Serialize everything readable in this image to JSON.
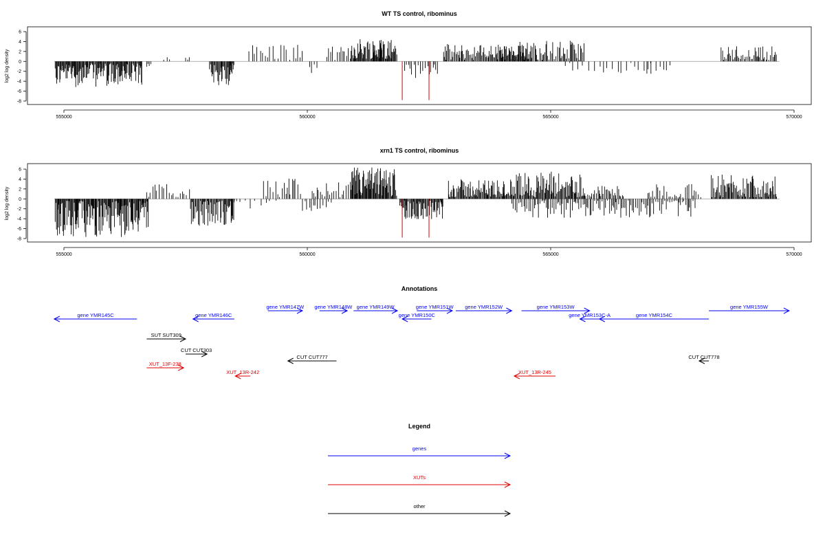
{
  "chart_data": [
    {
      "type": "bar",
      "title": "WT TS control, ribominus",
      "ylabel": "log2 log density",
      "xlim": [
        554800,
        569800
      ],
      "ylim": [
        -8,
        6.5
      ],
      "yticks": [
        "6",
        "4",
        "2",
        "0",
        "-2",
        "-4",
        "-6",
        "-8"
      ],
      "xticks": [
        "555000",
        "560000",
        "565000",
        "570000"
      ],
      "baseline_range": [
        554800,
        569700
      ],
      "highlight_color": "#cc0000",
      "highlights": [
        {
          "x": 561950,
          "y": -7.8
        },
        {
          "x": 562500,
          "y": -7.8
        }
      ],
      "segments": [
        {
          "start": 554820,
          "end": 556600,
          "min": -5.2,
          "max": -0.4,
          "density": 1.0
        },
        {
          "start": 557500,
          "end": 557600,
          "min": 0.3,
          "max": 1.0,
          "density": 0.3
        },
        {
          "start": 556700,
          "end": 556800,
          "min": -2.0,
          "max": -0.5,
          "density": 0.4
        },
        {
          "start": 557050,
          "end": 557200,
          "min": 0.3,
          "max": 1.0,
          "density": 0.2
        },
        {
          "start": 557990,
          "end": 558500,
          "min": -5.0,
          "max": -0.4,
          "density": 0.9
        },
        {
          "start": 558800,
          "end": 559900,
          "min": 0.3,
          "max": 3.8,
          "density": 0.25
        },
        {
          "start": 560050,
          "end": 560200,
          "min": -2.5,
          "max": -0.5,
          "density": 0.3
        },
        {
          "start": 560400,
          "end": 560900,
          "min": 0.3,
          "max": 3.0,
          "density": 0.4
        },
        {
          "start": 560900,
          "end": 561850,
          "min": 0.5,
          "max": 4.9,
          "density": 1.0
        },
        {
          "start": 562000,
          "end": 562700,
          "min": -3.5,
          "max": -0.3,
          "density": 0.35
        },
        {
          "start": 562800,
          "end": 564600,
          "min": 0.3,
          "max": 3.5,
          "density": 0.7
        },
        {
          "start": 564000,
          "end": 565700,
          "min": 0.3,
          "max": 4.2,
          "density": 0.6
        },
        {
          "start": 565300,
          "end": 567100,
          "min": -2.5,
          "max": -0.3,
          "density": 0.15
        },
        {
          "start": 567000,
          "end": 567500,
          "min": -2.8,
          "max": -0.3,
          "density": 0.2
        },
        {
          "start": 568500,
          "end": 569650,
          "min": 0.3,
          "max": 3.2,
          "density": 0.55
        }
      ]
    },
    {
      "type": "bar",
      "title": "xrn1 TS control, ribominus",
      "ylabel": "log2 log density",
      "xlim": [
        554800,
        569800
      ],
      "ylim": [
        -8,
        6.5
      ],
      "yticks": [
        "6",
        "4",
        "2",
        "0",
        "-2",
        "-4",
        "-6",
        "-8"
      ],
      "xticks": [
        "555000",
        "560000",
        "565000",
        "570000"
      ],
      "baseline_range": [
        554800,
        569700
      ],
      "highlight_color": "#cc0000",
      "highlights": [
        {
          "x": 561950,
          "y": -7.8
        },
        {
          "x": 562500,
          "y": -7.8
        }
      ],
      "segments": [
        {
          "start": 554820,
          "end": 556750,
          "min": -7.8,
          "max": -0.4,
          "density": 1.0
        },
        {
          "start": 556700,
          "end": 557600,
          "min": 0.3,
          "max": 3.0,
          "density": 0.3
        },
        {
          "start": 557600,
          "end": 558500,
          "min": -5.5,
          "max": -0.4,
          "density": 0.9
        },
        {
          "start": 558500,
          "end": 559400,
          "min": -2.0,
          "max": -0.3,
          "density": 0.15
        },
        {
          "start": 559100,
          "end": 559900,
          "min": 0.3,
          "max": 4.2,
          "density": 0.35
        },
        {
          "start": 559900,
          "end": 560500,
          "min": -2.5,
          "max": -0.3,
          "density": 0.3
        },
        {
          "start": 560100,
          "end": 560900,
          "min": 0.3,
          "max": 3.5,
          "density": 0.4
        },
        {
          "start": 560900,
          "end": 561850,
          "min": 0.5,
          "max": 6.5,
          "density": 1.0
        },
        {
          "start": 561900,
          "end": 562800,
          "min": -4.2,
          "max": -0.3,
          "density": 0.9
        },
        {
          "start": 562900,
          "end": 564200,
          "min": 0.3,
          "max": 4.0,
          "density": 0.9
        },
        {
          "start": 564200,
          "end": 565700,
          "min": 0.3,
          "max": 5.5,
          "density": 0.9
        },
        {
          "start": 564200,
          "end": 568000,
          "min": -3.8,
          "max": -0.3,
          "density": 0.45
        },
        {
          "start": 565700,
          "end": 566500,
          "min": 0.3,
          "max": 3.0,
          "density": 0.5
        },
        {
          "start": 567000,
          "end": 568100,
          "min": 0.3,
          "max": 3.0,
          "density": 0.35
        },
        {
          "start": 568300,
          "end": 569650,
          "min": 0.3,
          "max": 5.2,
          "density": 0.85
        }
      ]
    }
  ],
  "annotations": {
    "title": "Annotations",
    "colors": {
      "genes": "#0000ee",
      "xuts": "#dd0000",
      "other": "#000000"
    },
    "features": [
      {
        "label": "gene YMR145C",
        "start": 554800,
        "end": 556500,
        "dir": "left",
        "row": 1,
        "cat": "genes"
      },
      {
        "label": "gene YMR146C",
        "start": 557650,
        "end": 558500,
        "dir": "left",
        "row": 1,
        "cat": "genes"
      },
      {
        "label": "gene YMR147W",
        "start": 559190,
        "end": 559900,
        "dir": "right",
        "row": 0,
        "cat": "genes"
      },
      {
        "label": "gene YMR148W",
        "start": 560250,
        "end": 560820,
        "dir": "right",
        "row": 0,
        "cat": "genes"
      },
      {
        "label": "gene YMR149W",
        "start": 560950,
        "end": 561850,
        "dir": "right",
        "row": 0,
        "cat": "genes"
      },
      {
        "label": "gene YMR150C",
        "start": 561950,
        "end": 562550,
        "dir": "left",
        "row": 1,
        "cat": "genes"
      },
      {
        "label": "gene YMR151W",
        "start": 562250,
        "end": 562980,
        "dir": "right",
        "row": 0,
        "cat": "genes"
      },
      {
        "label": "gene YMR152W",
        "start": 563050,
        "end": 564200,
        "dir": "right",
        "row": 0,
        "cat": "genes"
      },
      {
        "label": "gene YMR153W",
        "start": 564400,
        "end": 565800,
        "dir": "right",
        "row": 0,
        "cat": "genes"
      },
      {
        "label": "gene YMR153C-A",
        "start": 565600,
        "end": 566000,
        "dir": "left",
        "row": 1,
        "cat": "genes"
      },
      {
        "label": "gene YMR154C",
        "start": 566000,
        "end": 568250,
        "dir": "left",
        "row": 1,
        "cat": "genes"
      },
      {
        "label": "gene YMR155W",
        "start": 568250,
        "end": 569900,
        "dir": "right",
        "row": 0,
        "cat": "genes"
      },
      {
        "label": "SUT SUT309",
        "start": 556700,
        "end": 557500,
        "dir": "right",
        "row": 2,
        "cat": "other"
      },
      {
        "label": "CUT CUT303",
        "start": 557500,
        "end": 557940,
        "dir": "right",
        "row": 3,
        "cat": "other"
      },
      {
        "label": "CUT CUT777",
        "start": 559600,
        "end": 560600,
        "dir": "left",
        "row": 4,
        "cat": "other"
      },
      {
        "label": "CUT CUT778",
        "start": 568050,
        "end": 568250,
        "dir": "left",
        "row": 4,
        "cat": "other"
      },
      {
        "label": "XUT_13F-238",
        "start": 556700,
        "end": 557460,
        "dir": "right",
        "row": 5,
        "cat": "xuts"
      },
      {
        "label": "XUT_13R-242",
        "start": 558520,
        "end": 558830,
        "dir": "left",
        "row": 6,
        "cat": "xuts"
      },
      {
        "label": "XUT_13R-245",
        "start": 564250,
        "end": 565100,
        "dir": "left",
        "row": 6,
        "cat": "xuts"
      }
    ]
  },
  "legend": {
    "title": "Legend",
    "items": [
      {
        "label": "genes",
        "cat": "genes"
      },
      {
        "label": "XUTs",
        "cat": "xuts"
      },
      {
        "label": "other",
        "cat": "other"
      }
    ]
  }
}
